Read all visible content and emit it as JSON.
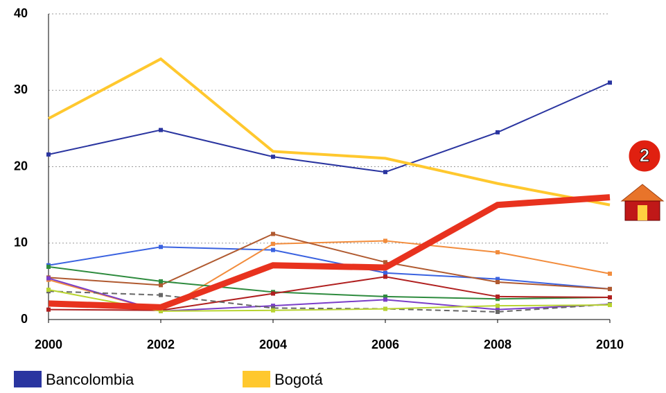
{
  "chart_data": {
    "type": "line",
    "x": [
      2000,
      2002,
      2004,
      2006,
      2008,
      2010
    ],
    "xlim": [
      2000,
      2010
    ],
    "xticks": [
      2000,
      2002,
      2004,
      2006,
      2008,
      2010
    ],
    "ylim": [
      0,
      40
    ],
    "yticks": [
      0,
      10,
      20,
      30,
      40
    ],
    "grid": true,
    "annotation": "2",
    "series": [
      {
        "name": "Bancolombia",
        "color": "#2a35a0",
        "linewidth": 2,
        "values": [
          21.6,
          24.8,
          21.3,
          19.3,
          24.5,
          31
        ]
      },
      {
        "name": "Bogotá",
        "color": "#ffc82e",
        "linewidth": 4,
        "values": [
          26.3,
          34.1,
          22,
          21.1,
          17.8,
          15
        ]
      },
      {
        "color": "#3a62e0",
        "linewidth": 2,
        "values": [
          7.1,
          9.5,
          9.1,
          6.1,
          5.3,
          4.0
        ]
      },
      {
        "color": "#f28c3c",
        "linewidth": 2,
        "values": [
          5.2,
          1.1,
          9.9,
          10.3,
          8.8,
          6.0
        ]
      },
      {
        "color": "#b05a30",
        "linewidth": 2,
        "values": [
          5.5,
          4.5,
          11.2,
          7.5,
          4.9,
          4.0
        ]
      },
      {
        "color": "#2e8b3e",
        "linewidth": 2,
        "values": [
          6.9,
          5.0,
          3.6,
          3.0,
          2.7,
          2.9
        ]
      },
      {
        "color": "#b02020",
        "linewidth": 2,
        "values": [
          1.3,
          1.2,
          3.4,
          5.6,
          3.0,
          2.9
        ]
      },
      {
        "color": "#7a3ec8",
        "linewidth": 2,
        "values": [
          5.4,
          1.1,
          1.8,
          2.6,
          1.3,
          2.0
        ]
      },
      {
        "color": "#666666",
        "linewidth": 2,
        "dash": true,
        "values": [
          3.7,
          3.2,
          1.5,
          1.4,
          1.0,
          2.0
        ]
      },
      {
        "color": "#b8d430",
        "linewidth": 2,
        "values": [
          3.9,
          1.1,
          1.2,
          1.4,
          1.8,
          1.9
        ]
      },
      {
        "color": "#e8321e",
        "linewidth": 9,
        "values": [
          2.1,
          1.6,
          7.1,
          6.8,
          15,
          16
        ]
      }
    ]
  }
}
